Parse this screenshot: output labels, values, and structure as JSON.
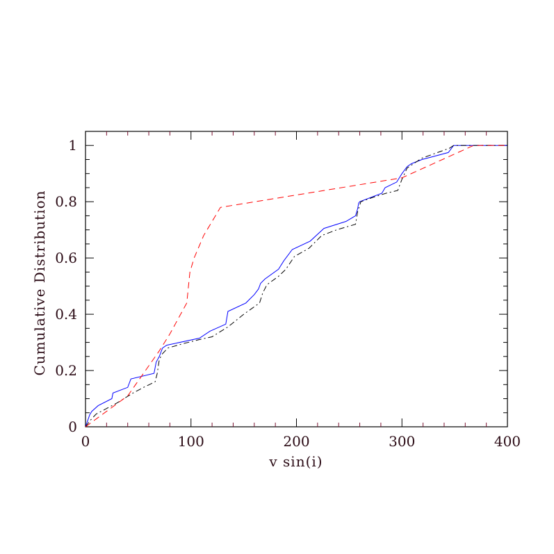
{
  "chart_data": {
    "type": "line",
    "xlabel": "v sin(i)",
    "ylabel": "Cumulative Distribution",
    "xlim": [
      0,
      400
    ],
    "ylim": [
      0,
      1.05
    ],
    "x_ticks": [
      "0",
      "100",
      "200",
      "300",
      "400"
    ],
    "y_ticks": [
      "0",
      "0.2",
      "0.4",
      "0.6",
      "0.8",
      "1"
    ],
    "grid": false,
    "colors": {
      "axes": "#000000",
      "tick_labels": "#2a0a14",
      "blue_series": "#0000ff",
      "black_series": "#000000",
      "red_series": "#ff0000"
    },
    "series": [
      {
        "color": "#0000ff",
        "style": "solid",
        "x": [
          0,
          4,
          6,
          12,
          25,
          26,
          40,
          43,
          65,
          67,
          70,
          73,
          77,
          108,
          118,
          133,
          135,
          152,
          160,
          164,
          166,
          170,
          183,
          188,
          196,
          213,
          226,
          247,
          256,
          258,
          259,
          260,
          281,
          284,
          295,
          300,
          305,
          309,
          319,
          344,
          349,
          400
        ],
        "y": [
          0,
          0.043,
          0.055,
          0.075,
          0.1,
          0.12,
          0.14,
          0.17,
          0.19,
          0.23,
          0.25,
          0.28,
          0.29,
          0.315,
          0.34,
          0.365,
          0.41,
          0.44,
          0.47,
          0.49,
          0.51,
          0.525,
          0.56,
          0.59,
          0.63,
          0.66,
          0.705,
          0.73,
          0.75,
          0.775,
          0.795,
          0.8,
          0.83,
          0.85,
          0.87,
          0.9,
          0.925,
          0.935,
          0.95,
          0.975,
          1.0,
          1.0
        ]
      },
      {
        "color": "#000000",
        "style": "dashdot",
        "x": [
          0,
          5,
          10,
          20,
          30,
          45,
          55,
          66,
          68,
          70,
          73,
          78,
          92,
          108,
          120,
          135,
          150,
          165,
          168,
          172,
          183,
          190,
          198,
          212,
          224,
          238,
          256,
          258,
          261,
          272,
          285,
          296,
          300,
          305,
          319,
          345,
          349,
          400
        ],
        "y": [
          0,
          0.025,
          0.045,
          0.065,
          0.085,
          0.12,
          0.14,
          0.16,
          0.19,
          0.24,
          0.26,
          0.28,
          0.295,
          0.31,
          0.32,
          0.355,
          0.4,
          0.44,
          0.475,
          0.505,
          0.535,
          0.56,
          0.605,
          0.635,
          0.68,
          0.7,
          0.72,
          0.765,
          0.8,
          0.815,
          0.83,
          0.84,
          0.88,
          0.92,
          0.955,
          0.99,
          1.0,
          1.0
        ]
      },
      {
        "color": "#ff0000",
        "style": "dashed",
        "x": [
          0,
          40,
          70,
          80,
          96,
          99,
          103,
          112,
          128,
          300,
          368,
          400
        ],
        "y": [
          0,
          0.11,
          0.27,
          0.33,
          0.44,
          0.55,
          0.6,
          0.68,
          0.78,
          0.885,
          1.0,
          1.0
        ]
      }
    ]
  }
}
